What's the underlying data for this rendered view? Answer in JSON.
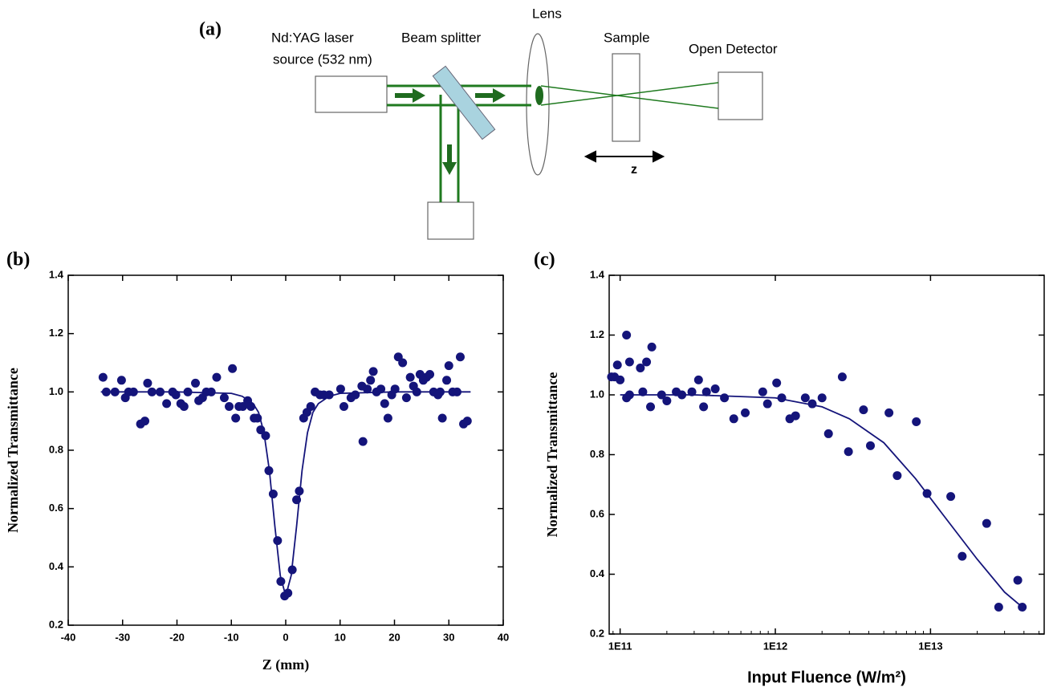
{
  "diagram": {
    "label": "(a)",
    "laser": [
      "Nd:YAG laser",
      "source (532 nm)"
    ],
    "splitter": "Beam splitter",
    "lens": "Lens",
    "sample": "Sample",
    "detector": "Open Detector",
    "axis": "z"
  },
  "chart_data": [
    {
      "type": "scatter",
      "panel_label": "(b)",
      "xlabel": "Z (mm)",
      "ylabel": "Normalized Transmittance",
      "xlim": [
        -40,
        40
      ],
      "xticks": [
        -40,
        -30,
        -20,
        -10,
        0,
        10,
        20,
        30,
        40
      ],
      "ylim": [
        0.2,
        1.4
      ],
      "yticks": [
        0.2,
        0.4,
        0.6,
        0.8,
        {
          "value": 1,
          "label": "1.0"
        },
        1.2,
        1.4
      ],
      "series": [
        {
          "style": "markers",
          "color": "#14147a",
          "x": [
            -33.6,
            -33.0,
            -31.4,
            -30.2,
            -29.5,
            -28.9,
            -28.0,
            -26.7,
            -25.9,
            -25.4,
            -24.6,
            -23.1,
            -21.9,
            -20.8,
            -20.2,
            -19.3,
            -18.7,
            -18.0,
            -16.6,
            -16.0,
            -15.3,
            -14.6,
            -13.7,
            -12.7,
            -11.3,
            -10.4,
            -9.8,
            -9.2,
            -8.6,
            -7.9,
            -7.0,
            -6.4,
            -5.8,
            -5.2,
            -4.6,
            -3.7,
            -3.1,
            -2.3,
            -1.5,
            -0.9,
            -0.2,
            0.4,
            1.2,
            2.0,
            2.5,
            3.3,
            3.9,
            4.6,
            5.4,
            6.3,
            7.0,
            8.0,
            10.1,
            10.7,
            12.0,
            12.8,
            14.0,
            14.2,
            15.0,
            15.6,
            16.1,
            16.7,
            17.5,
            18.2,
            18.8,
            19.5,
            20.1,
            20.7,
            21.5,
            22.2,
            22.9,
            23.5,
            24.1,
            24.7,
            25.3,
            25.9,
            26.5,
            27.2,
            28.0,
            28.4,
            28.8,
            29.6,
            30.0,
            30.7,
            31.5,
            32.1,
            32.7,
            33.4
          ],
          "values": [
            1.05,
            1.0,
            1.0,
            1.04,
            0.98,
            1.0,
            1.0,
            0.89,
            0.9,
            1.03,
            1.0,
            1.0,
            0.96,
            1.0,
            0.99,
            0.96,
            0.95,
            1.0,
            1.03,
            0.97,
            0.98,
            1.0,
            1.0,
            1.05,
            0.98,
            0.95,
            1.08,
            0.91,
            0.95,
            0.95,
            0.97,
            0.95,
            0.91,
            0.91,
            0.87,
            0.85,
            0.73,
            0.65,
            0.49,
            0.35,
            0.3,
            0.31,
            0.39,
            0.63,
            0.66,
            0.91,
            0.93,
            0.95,
            1.0,
            0.99,
            0.99,
            0.99,
            1.01,
            0.95,
            0.98,
            0.99,
            1.02,
            0.83,
            1.01,
            1.04,
            1.07,
            1.0,
            1.01,
            0.96,
            0.91,
            0.99,
            1.01,
            1.12,
            1.1,
            0.98,
            1.05,
            1.02,
            1.0,
            1.06,
            1.04,
            1.05,
            1.06,
            1.0,
            0.99,
            1.0,
            0.91,
            1.04,
            1.09,
            1.0,
            1.0,
            1.12,
            0.89,
            0.9
          ]
        },
        {
          "style": "line",
          "color": "#14147a",
          "x": [
            -34,
            -20,
            -10,
            -8,
            -6,
            -5,
            -4,
            -3,
            -2,
            -1,
            0,
            1,
            2,
            3,
            4,
            5,
            6,
            8,
            10,
            20,
            34
          ],
          "values": [
            1.0,
            1.0,
            0.995,
            0.985,
            0.96,
            0.93,
            0.86,
            0.73,
            0.54,
            0.37,
            0.3,
            0.37,
            0.54,
            0.73,
            0.86,
            0.93,
            0.96,
            0.985,
            0.995,
            1.0,
            1.0
          ]
        }
      ]
    },
    {
      "type": "scatter",
      "panel_label": "(c)",
      "xlabel": "Input Fluence (W/m²)",
      "ylabel": "Normalized Transmittance",
      "xscale": "log",
      "xlim": [
        85000000000.0,
        54000000000000.0
      ],
      "xticks": [
        {
          "value": 100000000000.0,
          "label": "1E11"
        },
        {
          "value": 1000000000000.0,
          "label": "1E12"
        },
        {
          "value": 10000000000000.0,
          "label": "1E13"
        }
      ],
      "ylim": [
        0.2,
        1.4
      ],
      "yticks": [
        0.2,
        0.4,
        0.6,
        0.8,
        {
          "value": 1,
          "label": "1.0"
        },
        1.2,
        1.4
      ],
      "series": [
        {
          "style": "markers",
          "color": "#14147a",
          "x": [
            88000000000.0,
            92000000000.0,
            96000000000.0,
            100000000000.0,
            110000000000.0,
            110000000000.0,
            115000000000.0,
            115000000000.0,
            135000000000.0,
            140000000000.0,
            148000000000.0,
            157000000000.0,
            160000000000.0,
            185000000000.0,
            200000000000.0,
            230000000000.0,
            250000000000.0,
            290000000000.0,
            320000000000.0,
            345000000000.0,
            360000000000.0,
            410000000000.0,
            470000000000.0,
            540000000000.0,
            640000000000.0,
            830000000000.0,
            890000000000.0,
            1020000000000.0,
            1100000000000.0,
            1240000000000.0,
            1350000000000.0,
            1560000000000.0,
            1730000000000.0,
            2000000000000.0,
            2200000000000.0,
            2700000000000.0,
            2960000000000.0,
            3700000000000.0,
            4100000000000.0,
            5400000000000.0,
            6100000000000.0,
            8100000000000.0,
            9500000000000.0,
            13500000000000.0,
            16000000000000.0,
            23000000000000.0,
            27500000000000.0,
            36500000000000.0,
            39000000000000.0
          ],
          "values": [
            1.06,
            1.06,
            1.1,
            1.05,
            1.2,
            0.99,
            1.11,
            1.0,
            1.09,
            1.01,
            1.11,
            0.96,
            1.16,
            1.0,
            0.98,
            1.01,
            1.0,
            1.01,
            1.05,
            0.96,
            1.01,
            1.02,
            0.99,
            0.92,
            0.94,
            1.01,
            0.97,
            1.04,
            0.99,
            0.92,
            0.93,
            0.99,
            0.97,
            0.99,
            0.87,
            1.06,
            0.81,
            0.95,
            0.83,
            0.94,
            0.73,
            0.91,
            0.67,
            0.66,
            0.46,
            0.57,
            0.29,
            0.38,
            0.29
          ]
        },
        {
          "style": "line",
          "color": "#14147a",
          "x": [
            100000000000.0,
            300000000000.0,
            1000000000000.0,
            2000000000000.0,
            3000000000000.0,
            5000000000000.0,
            8000000000000.0,
            12000000000000.0,
            20000000000000.0,
            30000000000000.0,
            39000000000000.0
          ],
          "values": [
            1.0,
            1.0,
            0.99,
            0.96,
            0.92,
            0.84,
            0.72,
            0.6,
            0.45,
            0.34,
            0.29
          ]
        }
      ]
    }
  ]
}
